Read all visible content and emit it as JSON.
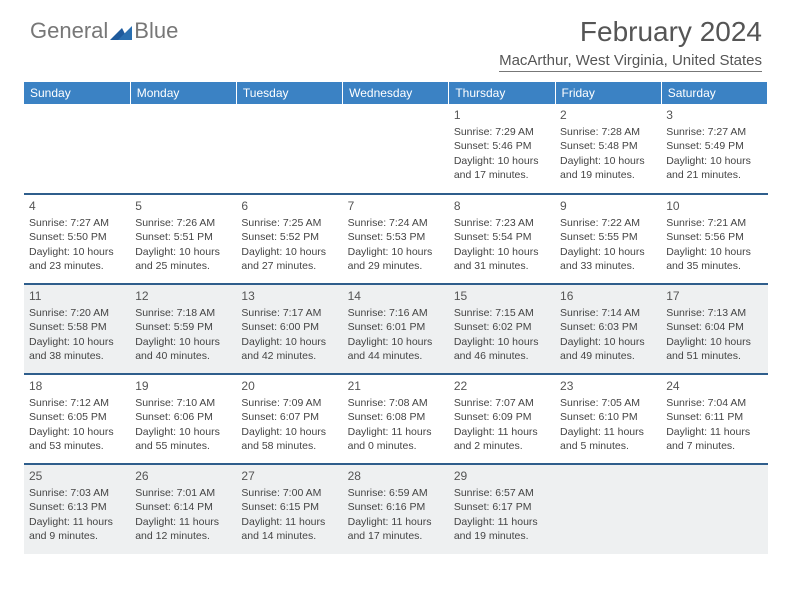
{
  "logo": {
    "text1": "General",
    "text2": "Blue"
  },
  "title": "February 2024",
  "subtitle": "MacArthur, West Virginia, United States",
  "colors": {
    "header_bg": "#3b82c4",
    "header_text": "#ffffff",
    "row_divider": "#2f5e8c",
    "shaded_bg": "#eef0f1",
    "text": "#444444",
    "logo_gray": "#777777",
    "logo_blue": "#1e5a9c"
  },
  "day_headers": [
    "Sunday",
    "Monday",
    "Tuesday",
    "Wednesday",
    "Thursday",
    "Friday",
    "Saturday"
  ],
  "weeks": [
    {
      "shaded": false,
      "days": [
        null,
        null,
        null,
        null,
        {
          "n": "1",
          "sunrise": "7:29 AM",
          "sunset": "5:46 PM",
          "daylight1": "Daylight: 10 hours",
          "daylight2": "and 17 minutes."
        },
        {
          "n": "2",
          "sunrise": "7:28 AM",
          "sunset": "5:48 PM",
          "daylight1": "Daylight: 10 hours",
          "daylight2": "and 19 minutes."
        },
        {
          "n": "3",
          "sunrise": "7:27 AM",
          "sunset": "5:49 PM",
          "daylight1": "Daylight: 10 hours",
          "daylight2": "and 21 minutes."
        }
      ]
    },
    {
      "shaded": false,
      "days": [
        {
          "n": "4",
          "sunrise": "7:27 AM",
          "sunset": "5:50 PM",
          "daylight1": "Daylight: 10 hours",
          "daylight2": "and 23 minutes."
        },
        {
          "n": "5",
          "sunrise": "7:26 AM",
          "sunset": "5:51 PM",
          "daylight1": "Daylight: 10 hours",
          "daylight2": "and 25 minutes."
        },
        {
          "n": "6",
          "sunrise": "7:25 AM",
          "sunset": "5:52 PM",
          "daylight1": "Daylight: 10 hours",
          "daylight2": "and 27 minutes."
        },
        {
          "n": "7",
          "sunrise": "7:24 AM",
          "sunset": "5:53 PM",
          "daylight1": "Daylight: 10 hours",
          "daylight2": "and 29 minutes."
        },
        {
          "n": "8",
          "sunrise": "7:23 AM",
          "sunset": "5:54 PM",
          "daylight1": "Daylight: 10 hours",
          "daylight2": "and 31 minutes."
        },
        {
          "n": "9",
          "sunrise": "7:22 AM",
          "sunset": "5:55 PM",
          "daylight1": "Daylight: 10 hours",
          "daylight2": "and 33 minutes."
        },
        {
          "n": "10",
          "sunrise": "7:21 AM",
          "sunset": "5:56 PM",
          "daylight1": "Daylight: 10 hours",
          "daylight2": "and 35 minutes."
        }
      ]
    },
    {
      "shaded": true,
      "days": [
        {
          "n": "11",
          "sunrise": "7:20 AM",
          "sunset": "5:58 PM",
          "daylight1": "Daylight: 10 hours",
          "daylight2": "and 38 minutes."
        },
        {
          "n": "12",
          "sunrise": "7:18 AM",
          "sunset": "5:59 PM",
          "daylight1": "Daylight: 10 hours",
          "daylight2": "and 40 minutes."
        },
        {
          "n": "13",
          "sunrise": "7:17 AM",
          "sunset": "6:00 PM",
          "daylight1": "Daylight: 10 hours",
          "daylight2": "and 42 minutes."
        },
        {
          "n": "14",
          "sunrise": "7:16 AM",
          "sunset": "6:01 PM",
          "daylight1": "Daylight: 10 hours",
          "daylight2": "and 44 minutes."
        },
        {
          "n": "15",
          "sunrise": "7:15 AM",
          "sunset": "6:02 PM",
          "daylight1": "Daylight: 10 hours",
          "daylight2": "and 46 minutes."
        },
        {
          "n": "16",
          "sunrise": "7:14 AM",
          "sunset": "6:03 PM",
          "daylight1": "Daylight: 10 hours",
          "daylight2": "and 49 minutes."
        },
        {
          "n": "17",
          "sunrise": "7:13 AM",
          "sunset": "6:04 PM",
          "daylight1": "Daylight: 10 hours",
          "daylight2": "and 51 minutes."
        }
      ]
    },
    {
      "shaded": false,
      "days": [
        {
          "n": "18",
          "sunrise": "7:12 AM",
          "sunset": "6:05 PM",
          "daylight1": "Daylight: 10 hours",
          "daylight2": "and 53 minutes."
        },
        {
          "n": "19",
          "sunrise": "7:10 AM",
          "sunset": "6:06 PM",
          "daylight1": "Daylight: 10 hours",
          "daylight2": "and 55 minutes."
        },
        {
          "n": "20",
          "sunrise": "7:09 AM",
          "sunset": "6:07 PM",
          "daylight1": "Daylight: 10 hours",
          "daylight2": "and 58 minutes."
        },
        {
          "n": "21",
          "sunrise": "7:08 AM",
          "sunset": "6:08 PM",
          "daylight1": "Daylight: 11 hours",
          "daylight2": "and 0 minutes."
        },
        {
          "n": "22",
          "sunrise": "7:07 AM",
          "sunset": "6:09 PM",
          "daylight1": "Daylight: 11 hours",
          "daylight2": "and 2 minutes."
        },
        {
          "n": "23",
          "sunrise": "7:05 AM",
          "sunset": "6:10 PM",
          "daylight1": "Daylight: 11 hours",
          "daylight2": "and 5 minutes."
        },
        {
          "n": "24",
          "sunrise": "7:04 AM",
          "sunset": "6:11 PM",
          "daylight1": "Daylight: 11 hours",
          "daylight2": "and 7 minutes."
        }
      ]
    },
    {
      "shaded": true,
      "days": [
        {
          "n": "25",
          "sunrise": "7:03 AM",
          "sunset": "6:13 PM",
          "daylight1": "Daylight: 11 hours",
          "daylight2": "and 9 minutes."
        },
        {
          "n": "26",
          "sunrise": "7:01 AM",
          "sunset": "6:14 PM",
          "daylight1": "Daylight: 11 hours",
          "daylight2": "and 12 minutes."
        },
        {
          "n": "27",
          "sunrise": "7:00 AM",
          "sunset": "6:15 PM",
          "daylight1": "Daylight: 11 hours",
          "daylight2": "and 14 minutes."
        },
        {
          "n": "28",
          "sunrise": "6:59 AM",
          "sunset": "6:16 PM",
          "daylight1": "Daylight: 11 hours",
          "daylight2": "and 17 minutes."
        },
        {
          "n": "29",
          "sunrise": "6:57 AM",
          "sunset": "6:17 PM",
          "daylight1": "Daylight: 11 hours",
          "daylight2": "and 19 minutes."
        },
        null,
        null
      ]
    }
  ],
  "labels": {
    "sunrise": "Sunrise: ",
    "sunset": "Sunset: "
  }
}
